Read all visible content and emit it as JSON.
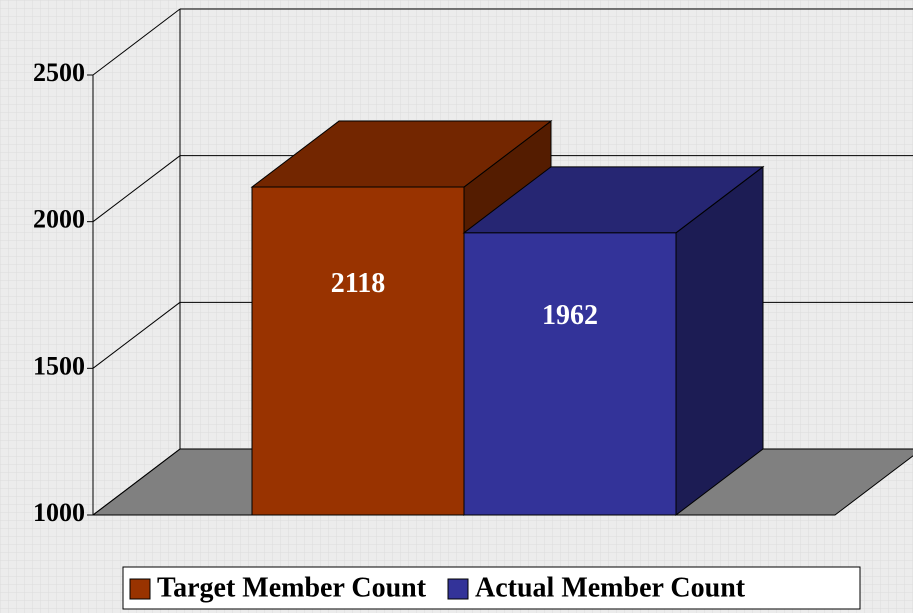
{
  "chart_data": {
    "type": "bar3d",
    "series": [
      {
        "name": "Target Member Count",
        "color": "#993300",
        "values": [
          2118
        ]
      },
      {
        "name": "Actual Member Count",
        "color": "#333399",
        "values": [
          1962
        ]
      }
    ],
    "ylim": [
      1000,
      2500
    ],
    "yticks": [
      1000,
      1500,
      2000,
      2500
    ],
    "grid": true,
    "legend": "bottom"
  }
}
